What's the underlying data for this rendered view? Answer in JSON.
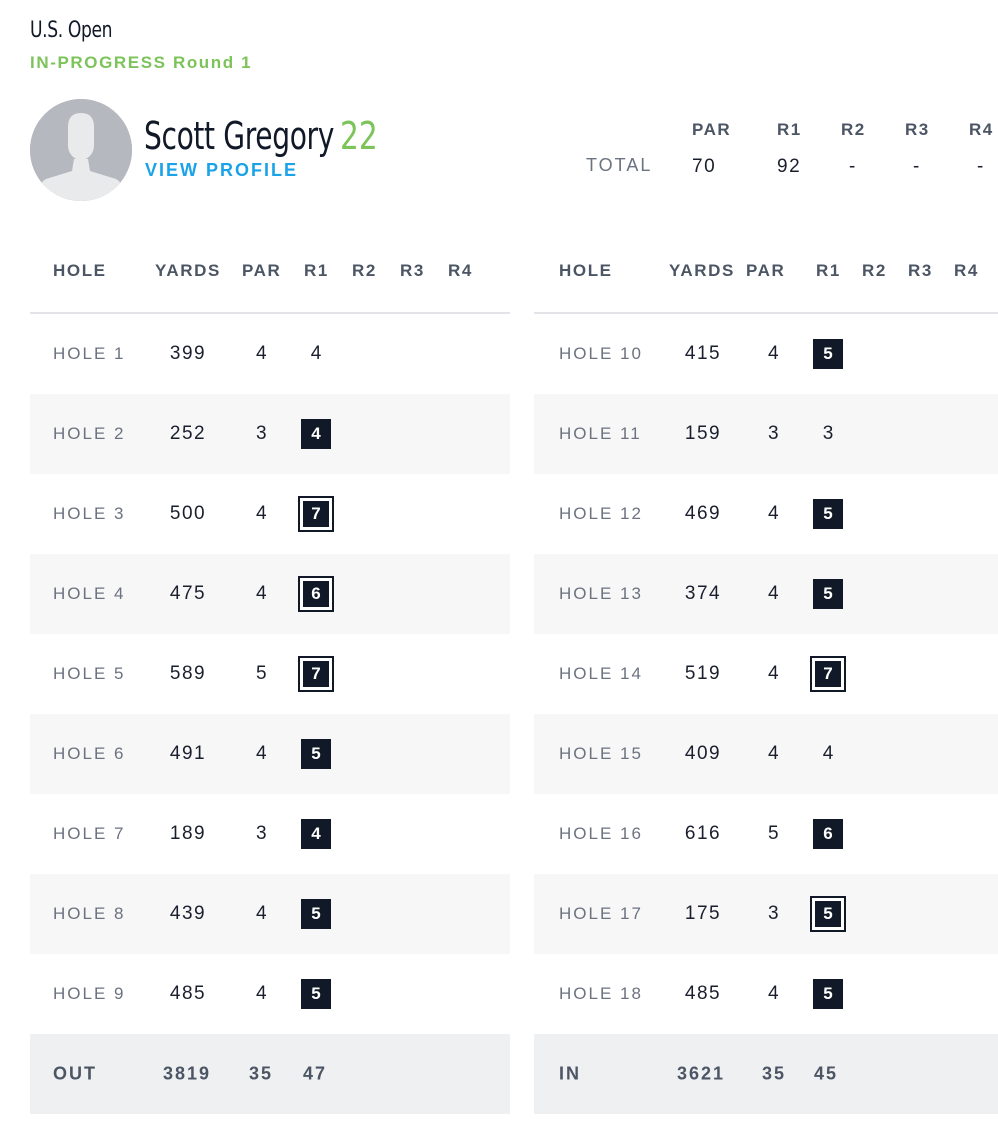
{
  "tournament": "U.S. Open",
  "status": "IN-PROGRESS Round 1",
  "player": {
    "name": "Scott Gregory",
    "score": "22",
    "profile_link": "VIEW PROFILE"
  },
  "summary": {
    "headers": [
      "PAR",
      "R1",
      "R2",
      "R3",
      "R4"
    ],
    "total_label": "TOTAL",
    "values": [
      "70",
      "92",
      "-",
      "-",
      "-"
    ]
  },
  "table_headers": [
    "HOLE",
    "YARDS",
    "PAR",
    "R1",
    "R2",
    "R3",
    "R4"
  ],
  "front_nine": [
    {
      "hole": "HOLE 1",
      "yards": "399",
      "par": "4",
      "r1": "4",
      "type": "plain"
    },
    {
      "hole": "HOLE 2",
      "yards": "252",
      "par": "3",
      "r1": "4",
      "type": "bogey"
    },
    {
      "hole": "HOLE 3",
      "yards": "500",
      "par": "4",
      "r1": "7",
      "type": "double"
    },
    {
      "hole": "HOLE 4",
      "yards": "475",
      "par": "4",
      "r1": "6",
      "type": "double"
    },
    {
      "hole": "HOLE 5",
      "yards": "589",
      "par": "5",
      "r1": "7",
      "type": "double"
    },
    {
      "hole": "HOLE 6",
      "yards": "491",
      "par": "4",
      "r1": "5",
      "type": "bogey"
    },
    {
      "hole": "HOLE 7",
      "yards": "189",
      "par": "3",
      "r1": "4",
      "type": "bogey"
    },
    {
      "hole": "HOLE 8",
      "yards": "439",
      "par": "4",
      "r1": "5",
      "type": "bogey"
    },
    {
      "hole": "HOLE 9",
      "yards": "485",
      "par": "4",
      "r1": "5",
      "type": "bogey"
    }
  ],
  "back_nine": [
    {
      "hole": "HOLE 10",
      "yards": "415",
      "par": "4",
      "r1": "5",
      "type": "bogey"
    },
    {
      "hole": "HOLE 11",
      "yards": "159",
      "par": "3",
      "r1": "3",
      "type": "plain"
    },
    {
      "hole": "HOLE 12",
      "yards": "469",
      "par": "4",
      "r1": "5",
      "type": "bogey"
    },
    {
      "hole": "HOLE 13",
      "yards": "374",
      "par": "4",
      "r1": "5",
      "type": "bogey"
    },
    {
      "hole": "HOLE 14",
      "yards": "519",
      "par": "4",
      "r1": "7",
      "type": "double"
    },
    {
      "hole": "HOLE 15",
      "yards": "409",
      "par": "4",
      "r1": "4",
      "type": "plain"
    },
    {
      "hole": "HOLE 16",
      "yards": "616",
      "par": "5",
      "r1": "6",
      "type": "bogey"
    },
    {
      "hole": "HOLE 17",
      "yards": "175",
      "par": "3",
      "r1": "5",
      "type": "double"
    },
    {
      "hole": "HOLE 18",
      "yards": "485",
      "par": "4",
      "r1": "5",
      "type": "bogey"
    }
  ],
  "out_total": {
    "label": "OUT",
    "yards": "3819",
    "par": "35",
    "r1": "47"
  },
  "in_total": {
    "label": "IN",
    "yards": "3621",
    "par": "35",
    "r1": "45"
  },
  "colors": {
    "accent_green": "#7cc35a",
    "link_blue": "#1aa3e8",
    "score_dark": "#111827"
  }
}
